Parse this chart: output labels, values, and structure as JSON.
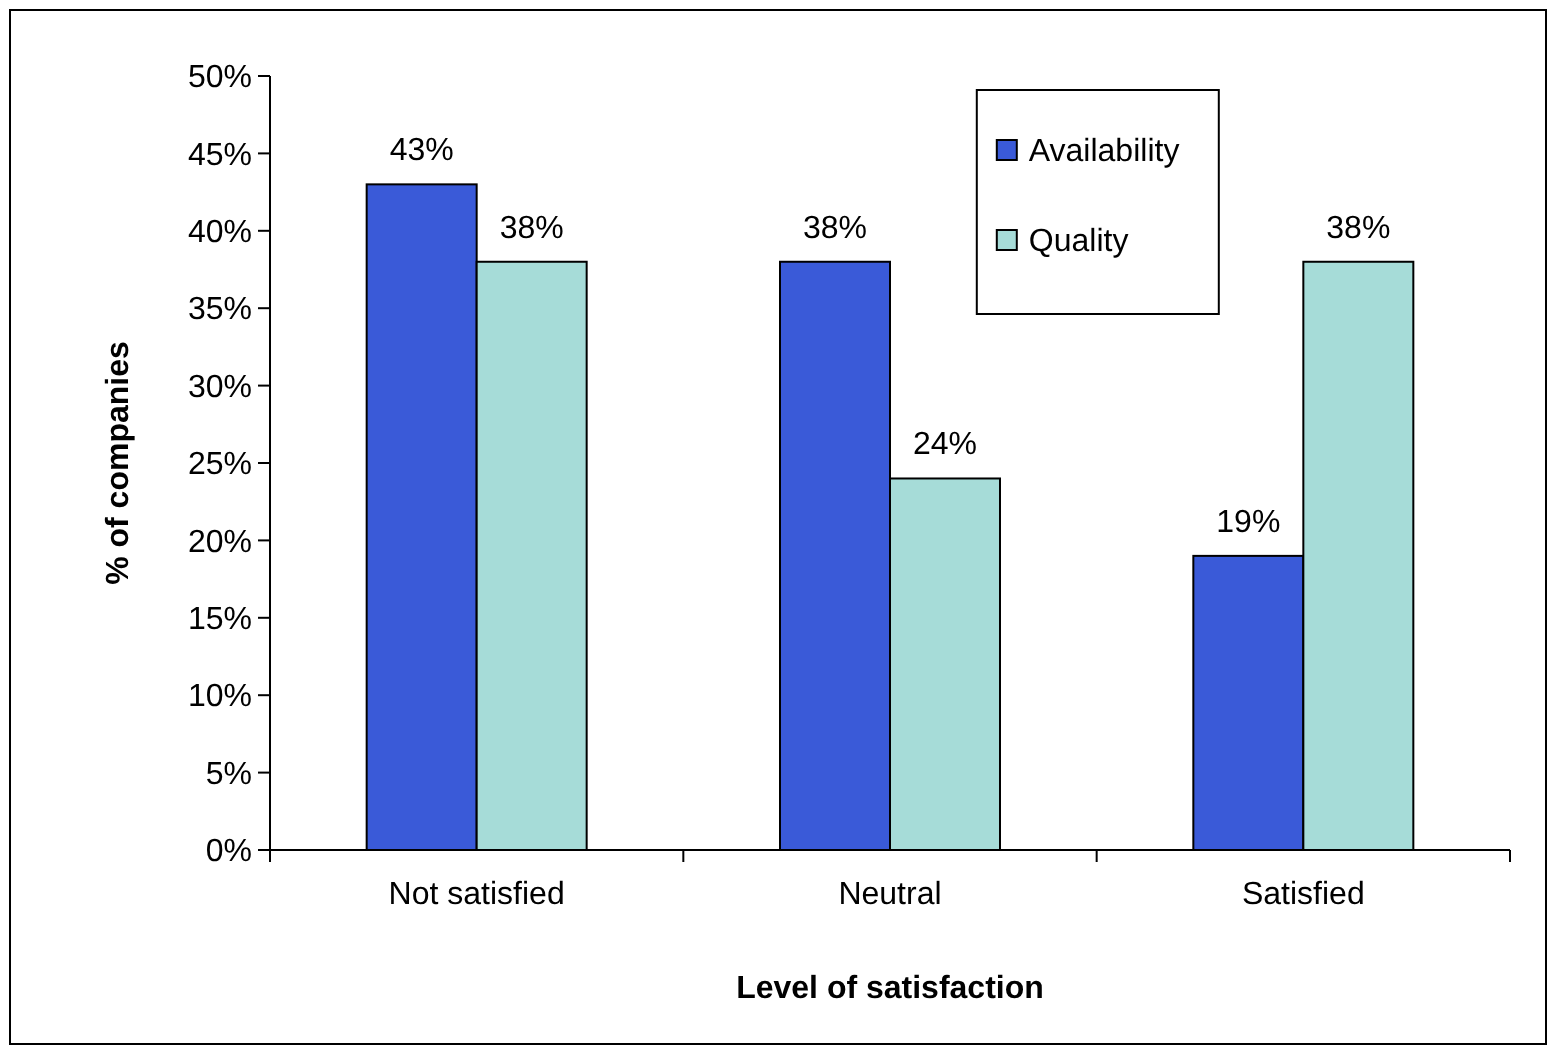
{
  "chart_data": {
    "type": "bar",
    "xlabel": "Level of satisfaction",
    "ylabel": "% of companies",
    "categories": [
      "Not satisfied",
      "Neutral",
      "Satisfied"
    ],
    "series": [
      {
        "name": "Availability",
        "color": "#3a5ad8",
        "values": [
          43,
          38,
          19
        ],
        "value_labels": [
          "43%",
          "38%",
          "19%"
        ]
      },
      {
        "name": "Quality",
        "color": "#a6dcd8",
        "values": [
          38,
          24,
          38
        ],
        "value_labels": [
          "38%",
          "24%",
          "38%"
        ]
      }
    ],
    "ylim": [
      0,
      50
    ],
    "yticks": [
      {
        "value": 0,
        "label": "0%"
      },
      {
        "value": 5,
        "label": "5%"
      },
      {
        "value": 10,
        "label": "10%"
      },
      {
        "value": 15,
        "label": "15%"
      },
      {
        "value": 20,
        "label": "20%"
      },
      {
        "value": 25,
        "label": "25%"
      },
      {
        "value": 30,
        "label": "30%"
      },
      {
        "value": 35,
        "label": "35%"
      },
      {
        "value": 40,
        "label": "40%"
      },
      {
        "value": 45,
        "label": "45%"
      },
      {
        "value": 50,
        "label": "50%"
      }
    ],
    "grid": false,
    "legend": "top right"
  }
}
